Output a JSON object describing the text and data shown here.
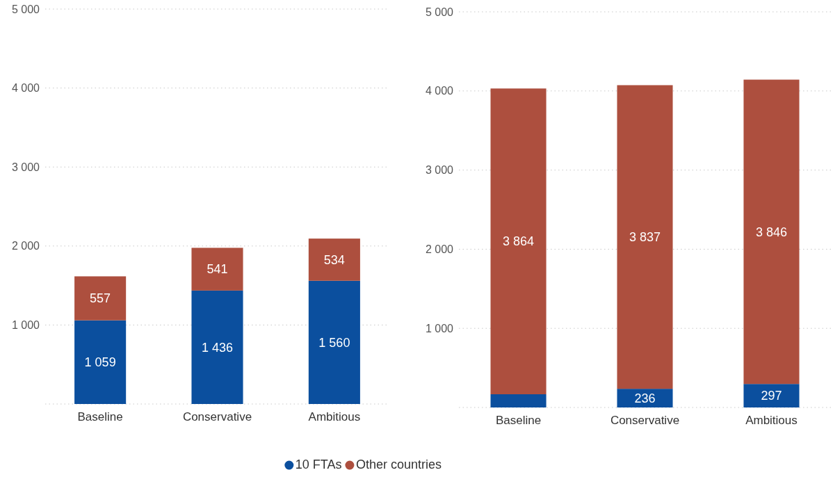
{
  "chart_data": [
    {
      "type": "bar",
      "stacked": true,
      "categories": [
        "Baseline",
        "Conservative",
        "Ambitious"
      ],
      "series": [
        {
          "name": "10 FTAs",
          "color": "#0b4f9e",
          "values": [
            1059,
            1436,
            1560
          ],
          "value_labels": [
            "1 059",
            "1 436",
            "1 560"
          ]
        },
        {
          "name": "Other countries",
          "color": "#ad4f3e",
          "values": [
            557,
            541,
            534
          ],
          "value_labels": [
            "557",
            "541",
            "534"
          ]
        }
      ],
      "ylim": [
        0,
        5000
      ],
      "yticks": [
        {
          "value": 0,
          "label": null
        },
        {
          "value": 1000,
          "label": "1 000"
        },
        {
          "value": 2000,
          "label": "2 000"
        },
        {
          "value": 3000,
          "label": "3 000"
        },
        {
          "value": 4000,
          "label": "4 000"
        },
        {
          "value": 5000,
          "label": "5 000"
        }
      ],
      "grid": "y",
      "legend": "bottom"
    },
    {
      "type": "bar",
      "stacked": true,
      "categories": [
        "Baseline",
        "Conservative",
        "Ambitious"
      ],
      "series": [
        {
          "color": "#0b4f9e",
          "values": [
            167,
            236,
            297
          ],
          "value_labels": [
            null,
            "236",
            "297"
          ]
        },
        {
          "color": "#ad4f3e",
          "values": [
            3864,
            3837,
            3846
          ],
          "value_labels": [
            "3 864",
            "3 837",
            "3 846"
          ]
        }
      ],
      "ylim": [
        0,
        5000
      ],
      "yticks": [
        {
          "value": 0,
          "label": null
        },
        {
          "value": 1000,
          "label": "1 000"
        },
        {
          "value": 2000,
          "label": "2 000"
        },
        {
          "value": 3000,
          "label": "3 000"
        },
        {
          "value": 4000,
          "label": "4 000"
        },
        {
          "value": 5000,
          "label": "5 000"
        }
      ],
      "grid": "y"
    }
  ]
}
